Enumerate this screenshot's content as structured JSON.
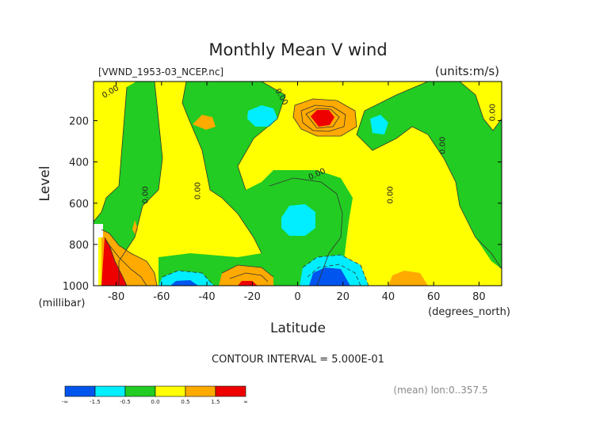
{
  "chart_data": {
    "type": "heatmap",
    "title": "Monthly Mean V wind",
    "file_label": "[VWND_1953-03_NCEP.nc]",
    "units_label": "(units:m/s)",
    "xlabel": "Latitude",
    "xunits": "(degrees_north)",
    "ylabel": "Level",
    "yunits": "(millibar)",
    "x_ticks": [
      -80,
      -60,
      -40,
      -20,
      0,
      20,
      40,
      60,
      80
    ],
    "y_ticks": [
      200,
      400,
      600,
      800,
      1000
    ],
    "xlim": [
      -90,
      90
    ],
    "ylim": [
      1000,
      10
    ],
    "contour_interval_text": "CONTOUR INTERVAL = 5.000E-01",
    "footnote": "(mean) lon:0..357.5",
    "contour_labels": [
      {
        "text": "0.00",
        "lat": -66,
        "lev": 560,
        "rotate": -90
      },
      {
        "text": "0.00",
        "lat": -43,
        "lev": 540,
        "rotate": -90
      },
      {
        "text": "0.00",
        "lat": -82,
        "lev": 70,
        "rotate": -30
      },
      {
        "text": "0.00",
        "lat": -8,
        "lev": 90,
        "rotate": 60
      },
      {
        "text": "0.00",
        "lat": 9,
        "lev": 470,
        "rotate": -25
      },
      {
        "text": "0.00",
        "lat": 42,
        "lev": 560,
        "rotate": -90
      },
      {
        "text": "0.00",
        "lat": 65,
        "lev": 320,
        "rotate": -90
      },
      {
        "text": "0.00",
        "lat": 87,
        "lev": 160,
        "rotate": -90
      }
    ],
    "colorbar": {
      "colors": [
        "#0055ee",
        "#00eeff",
        "#22cc22",
        "#ffff00",
        "#ffaa00",
        "#ee0000"
      ],
      "labels": [
        "-∞",
        "-1.5",
        "-0.5",
        "0.0",
        "0.5",
        "1.5",
        "∞"
      ]
    },
    "level_colors": {
      "strong_negative": "#0055ee",
      "negative": "#00eeff",
      "near_zero_negative": "#22cc22",
      "near_zero_positive": "#ffff00",
      "positive": "#ffaa00",
      "strong_positive": "#ee0000"
    }
  }
}
